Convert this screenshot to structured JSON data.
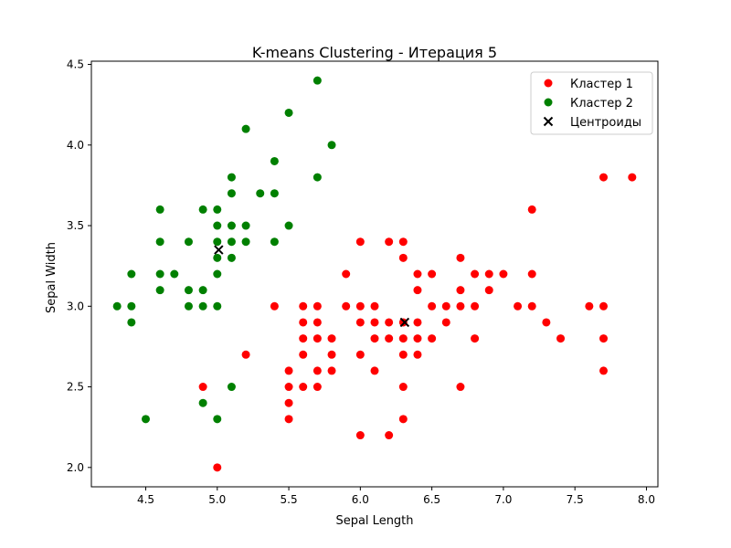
{
  "chart_data": {
    "type": "scatter",
    "title": "K-means Clustering - Итерация 5",
    "xlabel": "Sepal Length",
    "ylabel": "Sepal Width",
    "xlim": [
      4.12,
      8.08
    ],
    "ylim": [
      1.88,
      4.52
    ],
    "xticks": [
      4.5,
      5.0,
      5.5,
      6.0,
      6.5,
      7.0,
      7.5,
      8.0
    ],
    "xtick_labels": [
      "4.5",
      "5.0",
      "5.5",
      "6.0",
      "6.5",
      "7.0",
      "7.5",
      "8.0"
    ],
    "yticks": [
      2.0,
      2.5,
      3.0,
      3.5,
      4.0,
      4.5
    ],
    "ytick_labels": [
      "2.0",
      "2.5",
      "3.0",
      "3.5",
      "4.0",
      "4.5"
    ],
    "grid": false,
    "legend_position": "upper right",
    "series": [
      {
        "name": "Кластер 1",
        "color": "#ff0000",
        "marker": "circle",
        "points": [
          [
            4.9,
            2.5
          ],
          [
            5.0,
            2.0
          ],
          [
            5.2,
            2.7
          ],
          [
            5.4,
            3.0
          ],
          [
            5.5,
            2.3
          ],
          [
            5.5,
            2.4
          ],
          [
            5.5,
            2.5
          ],
          [
            5.5,
            2.6
          ],
          [
            5.6,
            2.5
          ],
          [
            5.6,
            2.7
          ],
          [
            5.6,
            2.8
          ],
          [
            5.6,
            2.9
          ],
          [
            5.6,
            3.0
          ],
          [
            5.7,
            2.5
          ],
          [
            5.7,
            2.6
          ],
          [
            5.7,
            2.8
          ],
          [
            5.7,
            2.9
          ],
          [
            5.7,
            3.0
          ],
          [
            5.8,
            2.6
          ],
          [
            5.8,
            2.7
          ],
          [
            5.8,
            2.8
          ],
          [
            5.9,
            3.0
          ],
          [
            5.9,
            3.2
          ],
          [
            6.0,
            2.2
          ],
          [
            6.0,
            2.7
          ],
          [
            6.0,
            2.9
          ],
          [
            6.0,
            3.0
          ],
          [
            6.0,
            3.4
          ],
          [
            6.1,
            2.6
          ],
          [
            6.1,
            2.8
          ],
          [
            6.1,
            2.9
          ],
          [
            6.1,
            3.0
          ],
          [
            6.2,
            2.2
          ],
          [
            6.2,
            2.8
          ],
          [
            6.2,
            2.9
          ],
          [
            6.2,
            3.4
          ],
          [
            6.3,
            2.3
          ],
          [
            6.3,
            2.5
          ],
          [
            6.3,
            2.7
          ],
          [
            6.3,
            2.8
          ],
          [
            6.3,
            2.9
          ],
          [
            6.3,
            3.3
          ],
          [
            6.3,
            3.4
          ],
          [
            6.4,
            2.7
          ],
          [
            6.4,
            2.8
          ],
          [
            6.4,
            2.9
          ],
          [
            6.4,
            3.1
          ],
          [
            6.4,
            3.2
          ],
          [
            6.5,
            2.8
          ],
          [
            6.5,
            3.0
          ],
          [
            6.5,
            3.2
          ],
          [
            6.6,
            2.9
          ],
          [
            6.6,
            3.0
          ],
          [
            6.7,
            2.5
          ],
          [
            6.7,
            3.0
          ],
          [
            6.7,
            3.1
          ],
          [
            6.7,
            3.3
          ],
          [
            6.8,
            2.8
          ],
          [
            6.8,
            3.0
          ],
          [
            6.8,
            3.2
          ],
          [
            6.9,
            3.1
          ],
          [
            6.9,
            3.2
          ],
          [
            7.0,
            3.2
          ],
          [
            7.1,
            3.0
          ],
          [
            7.2,
            3.0
          ],
          [
            7.2,
            3.2
          ],
          [
            7.2,
            3.6
          ],
          [
            7.3,
            2.9
          ],
          [
            7.4,
            2.8
          ],
          [
            7.6,
            3.0
          ],
          [
            7.7,
            2.6
          ],
          [
            7.7,
            2.8
          ],
          [
            7.7,
            3.0
          ],
          [
            7.7,
            3.8
          ],
          [
            7.9,
            3.8
          ]
        ]
      },
      {
        "name": "Кластер 2",
        "color": "#008000",
        "marker": "circle",
        "points": [
          [
            4.3,
            3.0
          ],
          [
            4.4,
            2.9
          ],
          [
            4.4,
            3.0
          ],
          [
            4.4,
            3.2
          ],
          [
            4.5,
            2.3
          ],
          [
            4.6,
            3.1
          ],
          [
            4.6,
            3.2
          ],
          [
            4.6,
            3.4
          ],
          [
            4.6,
            3.6
          ],
          [
            4.7,
            3.2
          ],
          [
            4.8,
            3.0
          ],
          [
            4.8,
            3.1
          ],
          [
            4.8,
            3.4
          ],
          [
            4.9,
            2.4
          ],
          [
            4.9,
            3.0
          ],
          [
            4.9,
            3.1
          ],
          [
            4.9,
            3.6
          ],
          [
            5.0,
            2.3
          ],
          [
            5.0,
            3.0
          ],
          [
            5.0,
            3.2
          ],
          [
            5.0,
            3.3
          ],
          [
            5.0,
            3.4
          ],
          [
            5.0,
            3.5
          ],
          [
            5.0,
            3.6
          ],
          [
            5.1,
            2.5
          ],
          [
            5.1,
            3.3
          ],
          [
            5.1,
            3.4
          ],
          [
            5.1,
            3.5
          ],
          [
            5.1,
            3.7
          ],
          [
            5.1,
            3.8
          ],
          [
            5.2,
            3.4
          ],
          [
            5.2,
            3.5
          ],
          [
            5.2,
            4.1
          ],
          [
            5.3,
            3.7
          ],
          [
            5.4,
            3.4
          ],
          [
            5.4,
            3.7
          ],
          [
            5.4,
            3.9
          ],
          [
            5.5,
            3.5
          ],
          [
            5.5,
            4.2
          ],
          [
            5.7,
            3.8
          ],
          [
            5.7,
            4.4
          ],
          [
            5.8,
            4.0
          ]
        ]
      }
    ],
    "centroids": {
      "name": "Центроиды",
      "color": "#000000",
      "marker": "x",
      "points": [
        [
          6.31,
          2.9
        ],
        [
          5.01,
          3.35
        ]
      ]
    }
  }
}
